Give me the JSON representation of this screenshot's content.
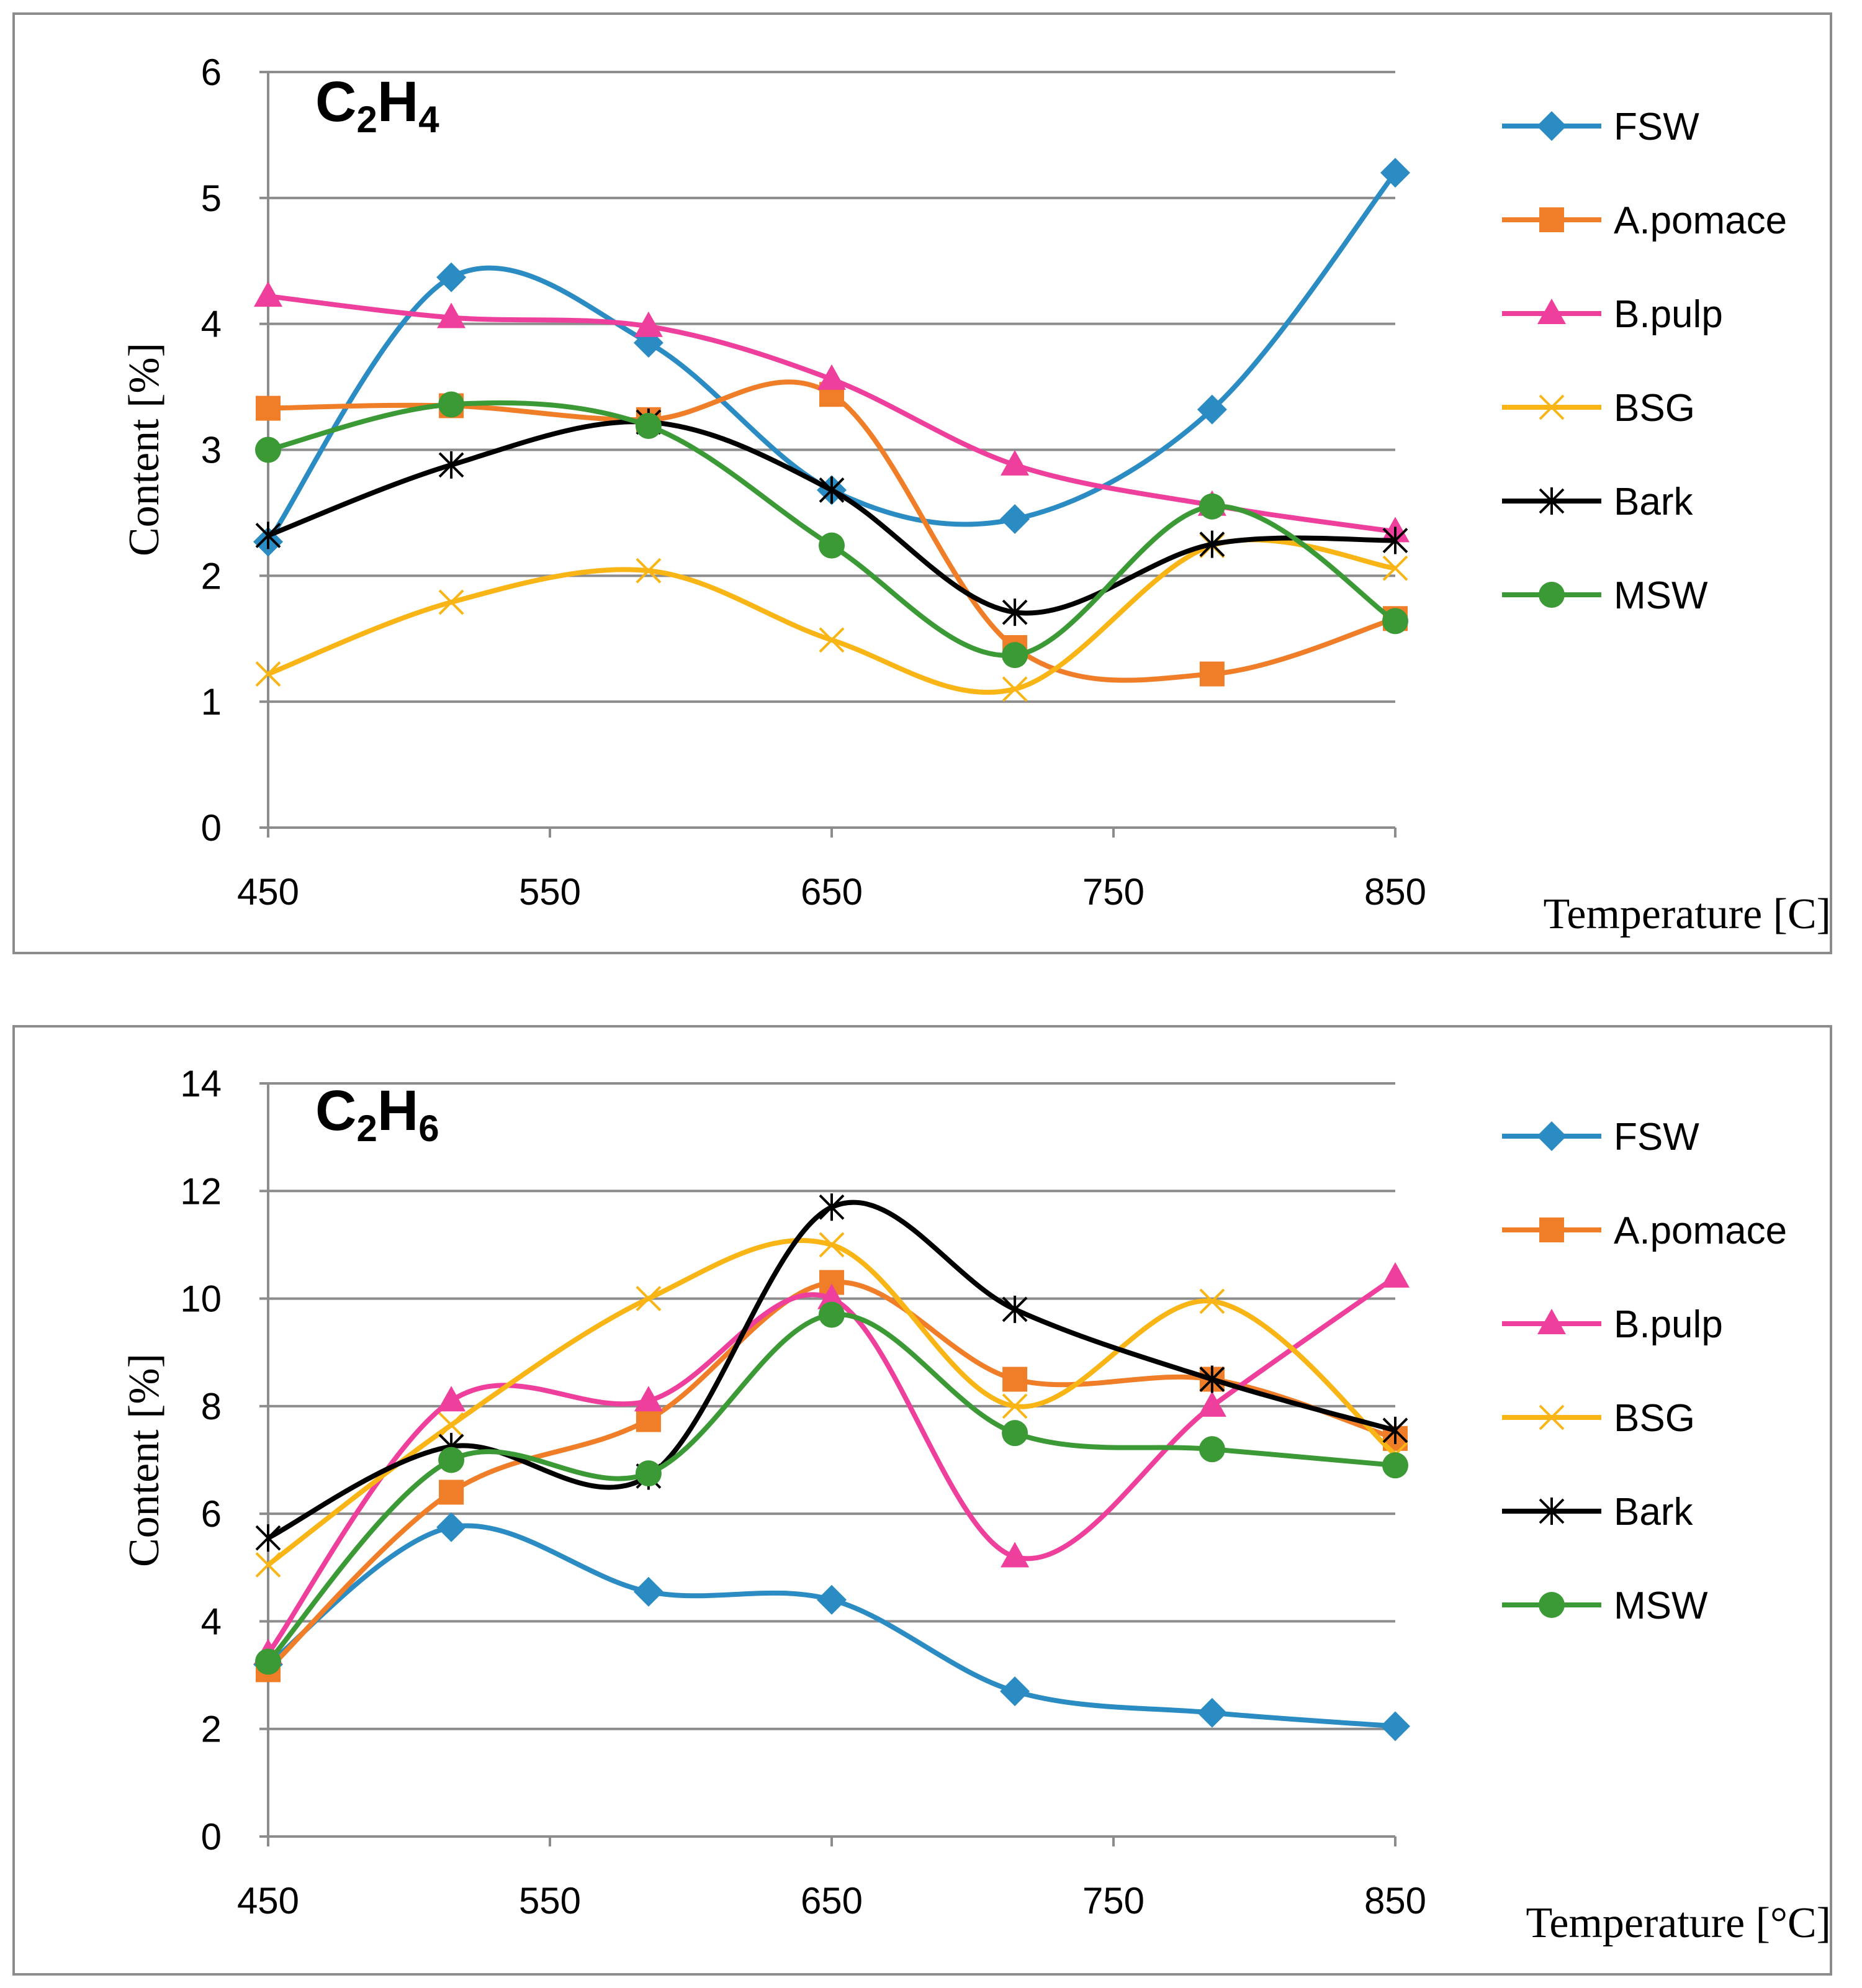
{
  "chart_data": [
    {
      "type": "line",
      "title": "C₂H₄",
      "title_main": "C",
      "title_sub1": "2",
      "title_mid": "H",
      "title_sub2": "4",
      "xlabel": "Temperature [C]",
      "ylabel": "Content [%]",
      "xlim": [
        450,
        850
      ],
      "ylim": [
        0,
        6
      ],
      "xticks": [
        450,
        550,
        650,
        750,
        850
      ],
      "yticks": [
        0,
        1,
        2,
        3,
        4,
        5,
        6
      ],
      "grid": "horizontal",
      "legend_position": "right",
      "x": [
        450,
        515,
        585,
        650,
        715,
        785,
        850
      ],
      "series": [
        {
          "name": "FSW",
          "marker": "diamond",
          "color": "#2b8cc4",
          "values": [
            2.27,
            4.37,
            3.85,
            2.68,
            2.45,
            3.32,
            5.2
          ]
        },
        {
          "name": "A.pomace",
          "marker": "square",
          "color": "#f07d27",
          "values": [
            3.33,
            3.35,
            3.24,
            3.44,
            1.43,
            1.22,
            1.66
          ]
        },
        {
          "name": "B.pulp",
          "marker": "triangle",
          "color": "#ef3f9c",
          "values": [
            4.22,
            4.05,
            3.98,
            3.56,
            2.88,
            2.56,
            2.35
          ]
        },
        {
          "name": "BSG",
          "marker": "x",
          "color": "#f8b515",
          "values": [
            1.22,
            1.79,
            2.04,
            1.49,
            1.1,
            2.24,
            2.06
          ]
        },
        {
          "name": "Bark",
          "marker": "star",
          "color": "#000000",
          "values": [
            2.32,
            2.88,
            3.22,
            2.68,
            1.71,
            2.25,
            2.28
          ]
        },
        {
          "name": "MSW",
          "marker": "circle",
          "color": "#3b9a35",
          "values": [
            3.0,
            3.36,
            3.19,
            2.24,
            1.37,
            2.55,
            1.64
          ]
        }
      ]
    },
    {
      "type": "line",
      "title": "C₂H₆",
      "title_main": "C",
      "title_sub1": "2",
      "title_mid": "H",
      "title_sub2": "6",
      "xlabel": "Temperature [°C]",
      "ylabel": "Content [%]",
      "xlim": [
        450,
        850
      ],
      "ylim": [
        0,
        14
      ],
      "xticks": [
        450,
        550,
        650,
        750,
        850
      ],
      "yticks": [
        0,
        2,
        4,
        6,
        8,
        10,
        12,
        14
      ],
      "grid": "horizontal",
      "legend_position": "right",
      "x": [
        450,
        515,
        585,
        650,
        715,
        785,
        850
      ],
      "series": [
        {
          "name": "FSW",
          "marker": "diamond",
          "color": "#2b8cc4",
          "values": [
            3.2,
            5.75,
            4.55,
            4.4,
            2.7,
            2.3,
            2.05
          ]
        },
        {
          "name": "A.pomace",
          "marker": "square",
          "color": "#f07d27",
          "values": [
            3.1,
            6.4,
            7.75,
            10.3,
            8.5,
            8.5,
            7.4
          ]
        },
        {
          "name": "B.pulp",
          "marker": "triangle",
          "color": "#ef3f9c",
          "values": [
            3.4,
            8.1,
            8.1,
            10.0,
            5.2,
            8.0,
            10.4
          ]
        },
        {
          "name": "BSG",
          "marker": "x",
          "color": "#f8b515",
          "values": [
            5.05,
            7.65,
            10.0,
            11.0,
            8.0,
            9.95,
            7.1
          ]
        },
        {
          "name": "Bark",
          "marker": "star",
          "color": "#000000",
          "values": [
            5.55,
            7.25,
            6.7,
            11.7,
            9.8,
            8.5,
            7.55
          ]
        },
        {
          "name": "MSW",
          "marker": "circle",
          "color": "#3b9a35",
          "values": [
            3.25,
            7.0,
            6.75,
            9.7,
            7.5,
            7.2,
            6.9
          ]
        }
      ]
    }
  ]
}
